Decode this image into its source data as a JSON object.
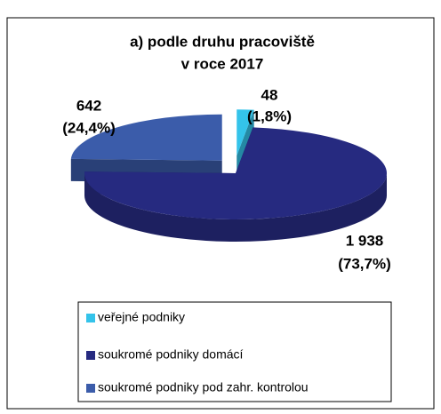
{
  "chart_data": {
    "type": "pie",
    "title": "a) podle druhu pracoviště",
    "subtitle": "v roce 2017",
    "categories": [
      "veřejné podniky",
      "soukromé podniky domácí",
      "soukromé podniky pod zahr. kontrolou"
    ],
    "values": [
      48,
      1938,
      642
    ],
    "value_labels": [
      "48",
      "1 938",
      "642"
    ],
    "percents": [
      1.8,
      73.7,
      24.4
    ],
    "percent_labels": [
      "(1,8%)",
      "(73,7%)",
      "(24,4%)"
    ],
    "colors": [
      "#34c3ea",
      "#262a80",
      "#3b5caa"
    ],
    "legend": "bottom"
  }
}
